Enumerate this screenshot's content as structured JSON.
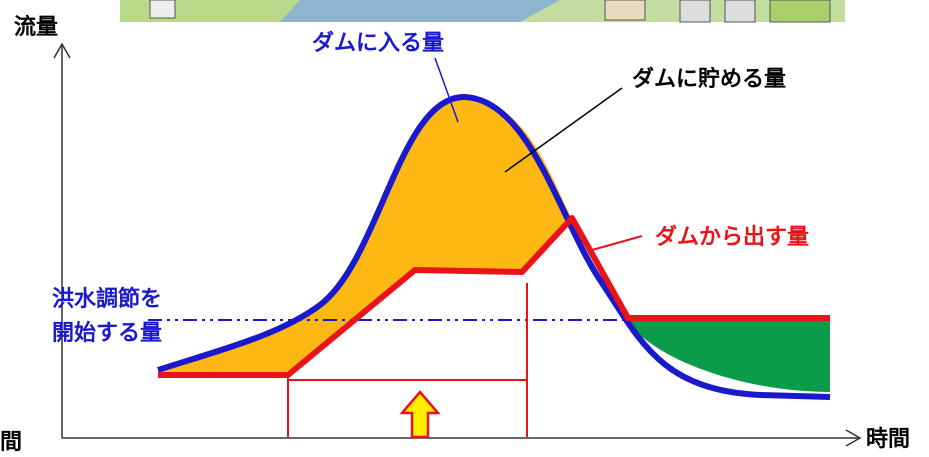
{
  "axes": {
    "y_label": "流量",
    "x_label": "時間",
    "x_label_left": "時間"
  },
  "labels": {
    "inflow": "ダムに入る量",
    "storage": "ダムに貯める量",
    "outflow": "ダムから出す量",
    "threshold": [
      "洪水調節を",
      "開始する量"
    ]
  }
}
